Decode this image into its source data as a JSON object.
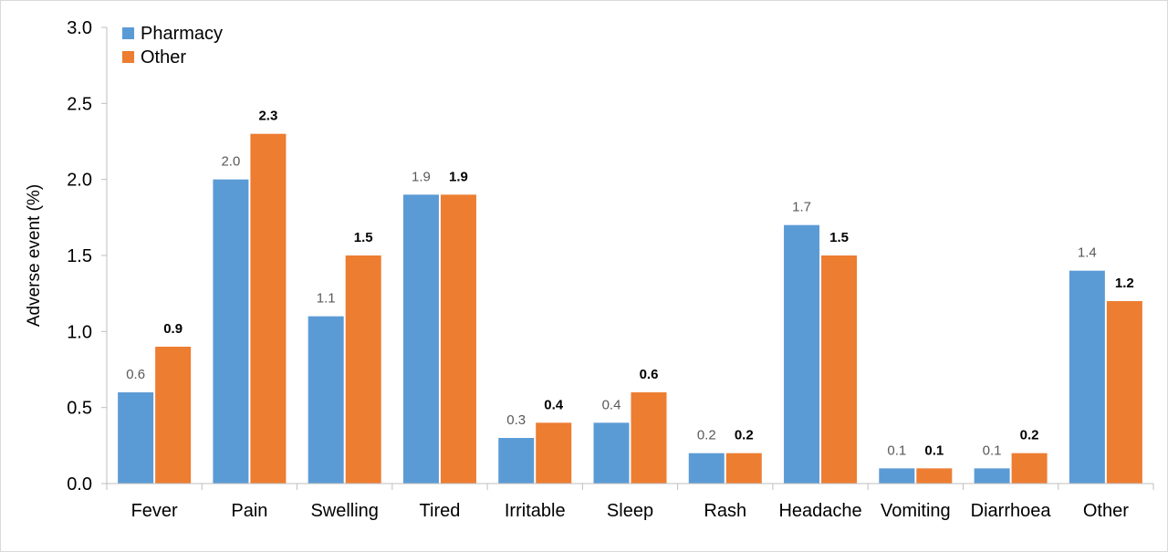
{
  "chart_data": {
    "type": "bar",
    "title": "",
    "xlabel": "",
    "ylabel": "Adverse event (%)",
    "ylim": [
      0,
      3.0
    ],
    "yticks": [
      "0.0",
      "0.5",
      "1.0",
      "1.5",
      "2.0",
      "2.5",
      "3.0"
    ],
    "grid": false,
    "legend_position": "top-left",
    "categories": [
      "Fever",
      "Pain",
      "Swelling",
      "Tired",
      "Irritable",
      "Sleep",
      "Rash",
      "Headache",
      "Vomiting",
      "Diarrhoea",
      "Other"
    ],
    "series": [
      {
        "name": "Pharmacy",
        "color": "#5b9bd5",
        "label_color": "#595959",
        "label_weight": "normal",
        "values": [
          0.6,
          2.0,
          1.1,
          1.9,
          0.3,
          0.4,
          0.2,
          1.7,
          0.1,
          0.1,
          1.4
        ]
      },
      {
        "name": "Other",
        "color": "#ed7d31",
        "label_color": "#000000",
        "label_weight": "bold",
        "values": [
          0.9,
          2.3,
          1.5,
          1.9,
          0.4,
          0.6,
          0.2,
          1.5,
          0.1,
          0.2,
          1.2
        ]
      }
    ]
  }
}
